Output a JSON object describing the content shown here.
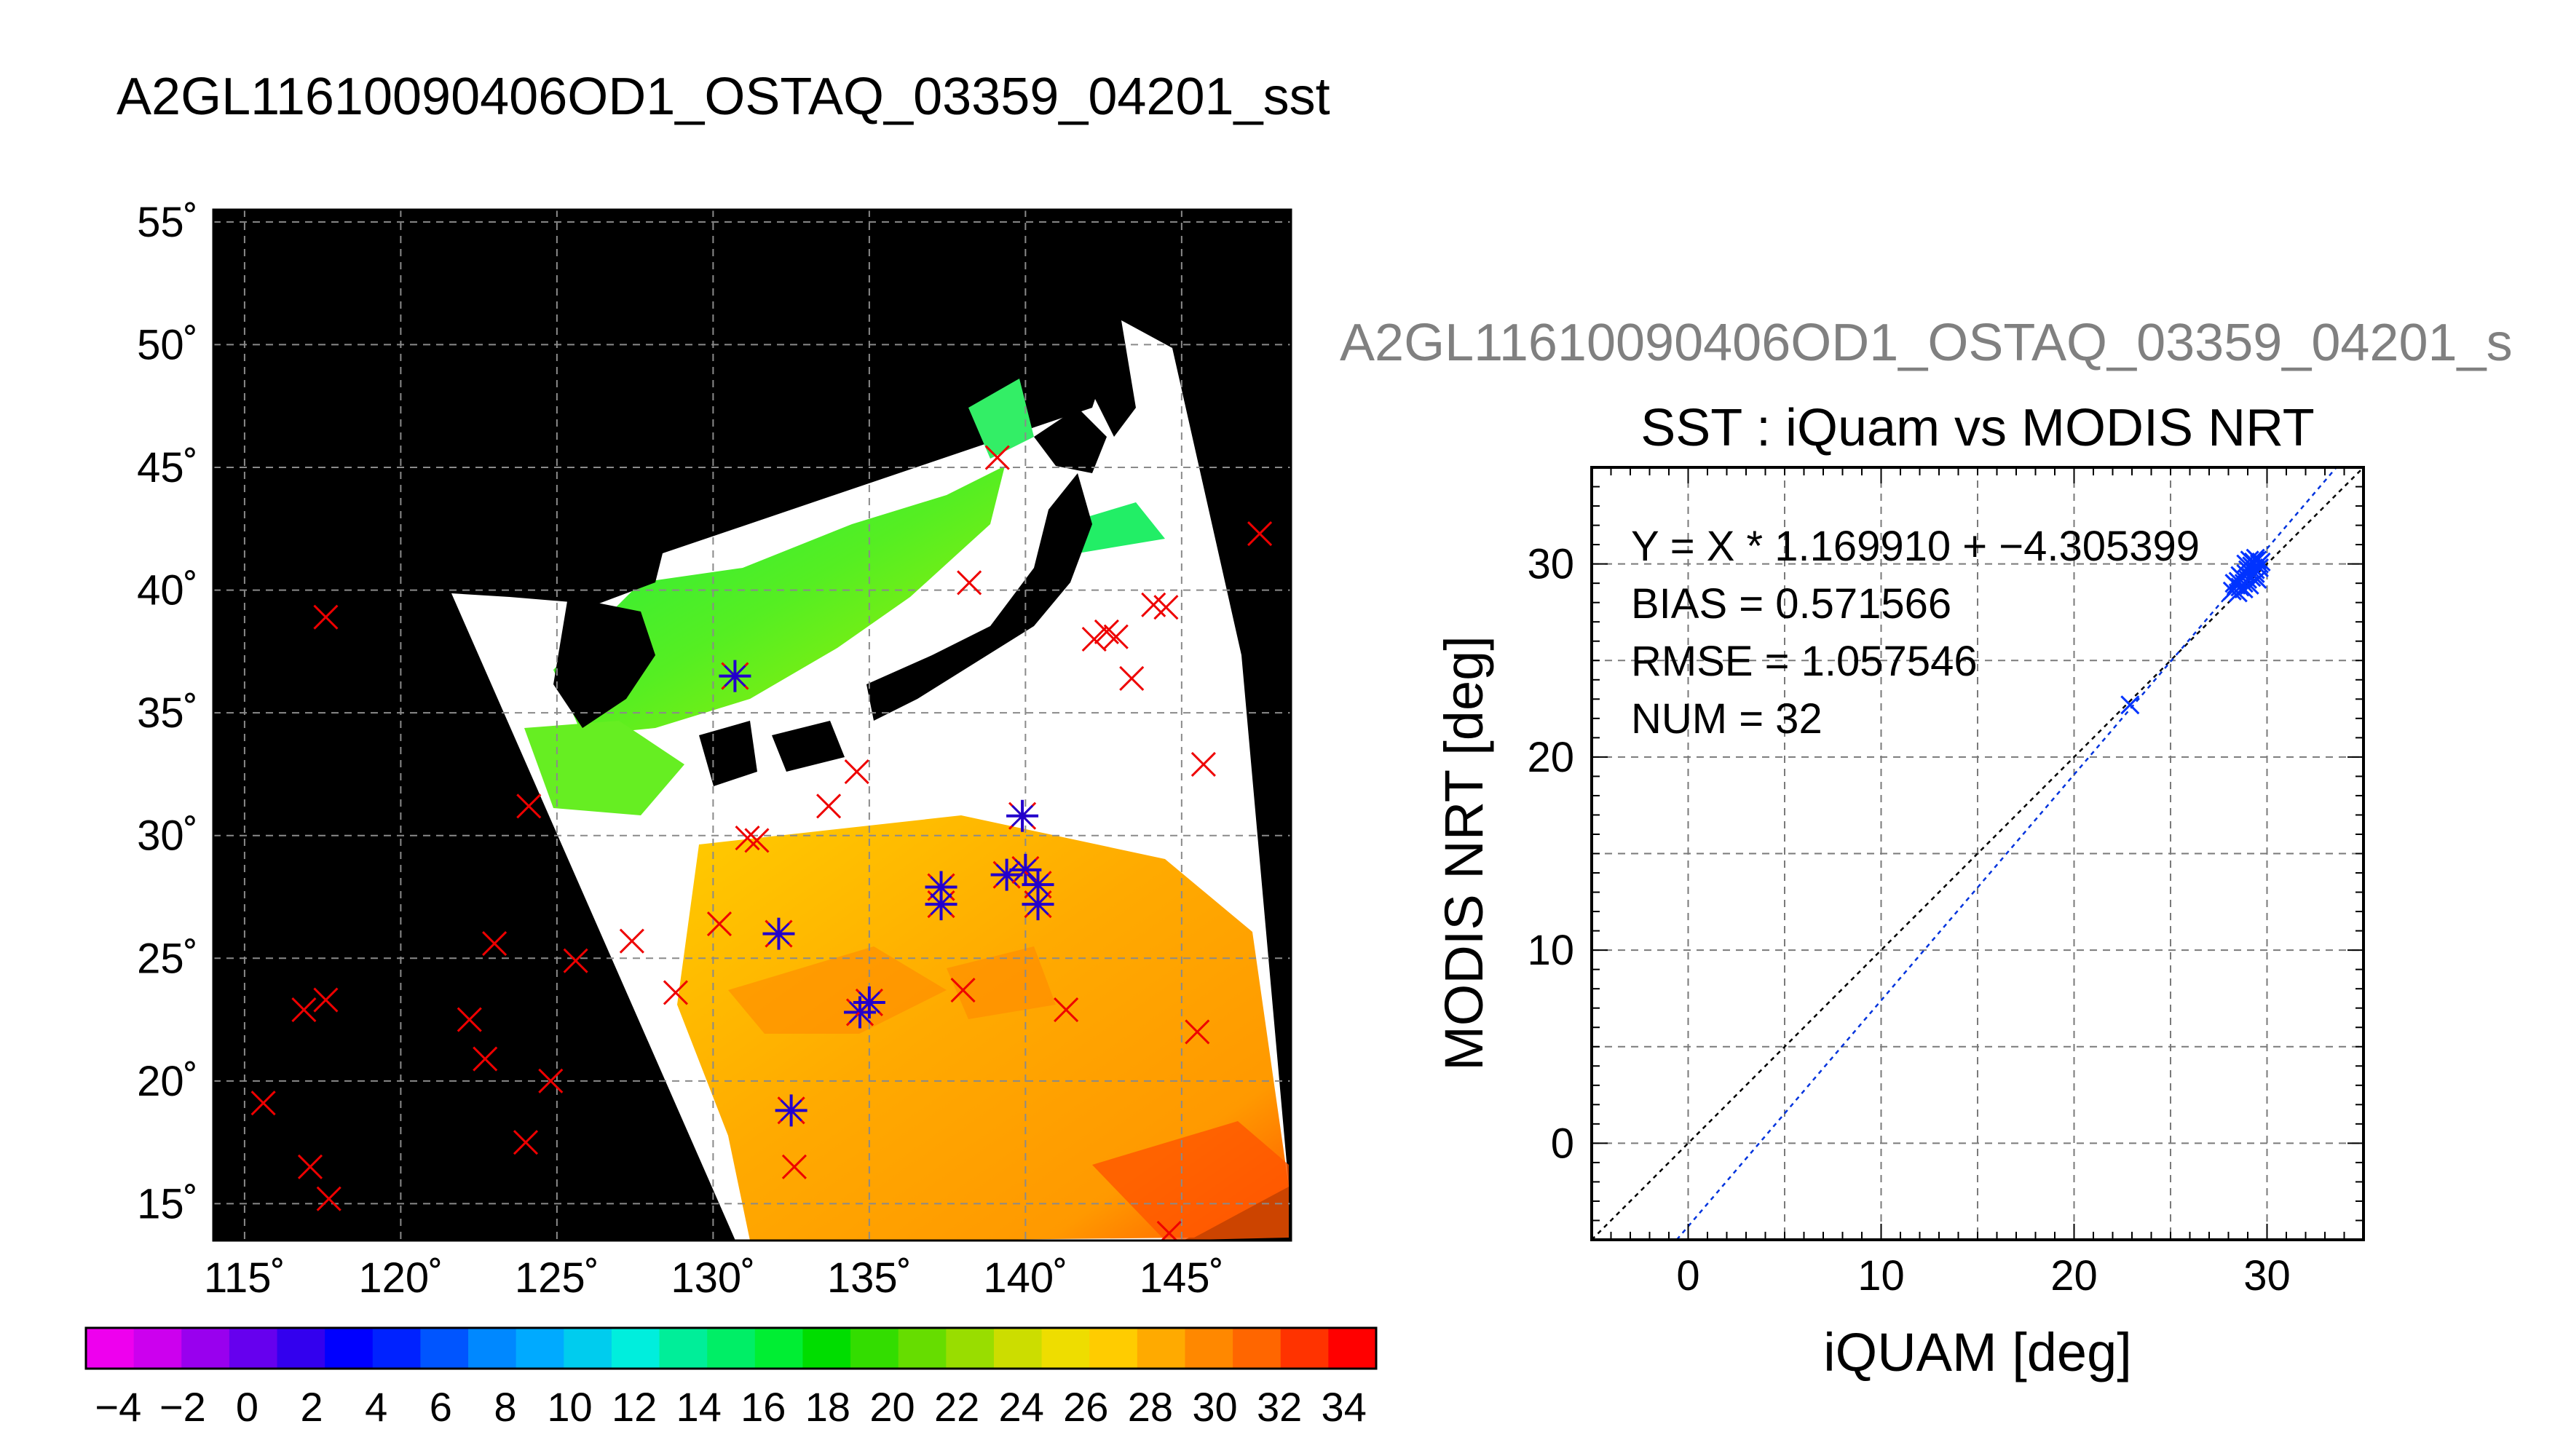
{
  "page_title": "A2GL11610090406OD1_OSTAQ_03359_04201_sst",
  "secondary_title": "A2GL11610090406OD1_OSTAQ_03359_04201_s",
  "chart_data": [
    {
      "type": "heatmap",
      "title": "",
      "x_ticks": [
        "115˚",
        "120˚",
        "125˚",
        "130˚",
        "135˚",
        "140˚",
        "145˚"
      ],
      "x_tick_values": [
        115,
        120,
        125,
        130,
        135,
        140,
        145
      ],
      "y_ticks": [
        "15˚",
        "20˚",
        "25˚",
        "30˚",
        "35˚",
        "40˚",
        "45˚",
        "50˚",
        "55˚"
      ],
      "y_tick_values": [
        15,
        20,
        25,
        30,
        35,
        40,
        45,
        50,
        55
      ],
      "xlim": [
        114,
        148.5
      ],
      "ylim": [
        13.5,
        55.5
      ],
      "grid": true,
      "colorbar": {
        "ticks": [
          "−4",
          "−2",
          "0",
          "2",
          "4",
          "6",
          "8",
          "10",
          "12",
          "14",
          "16",
          "18",
          "20",
          "22",
          "24",
          "26",
          "28",
          "30",
          "32",
          "34"
        ],
        "range": [
          -5,
          35
        ],
        "colors": [
          "#ee00ee",
          "#cc00ee",
          "#9900ee",
          "#6600ee",
          "#3300ee",
          "#0000ff",
          "#0022ff",
          "#0055ff",
          "#0088ff",
          "#00aaff",
          "#00ccee",
          "#00eedd",
          "#00ee99",
          "#00ee66",
          "#00ee33",
          "#00dd00",
          "#33dd00",
          "#66dd00",
          "#99dd00",
          "#ccdd00",
          "#eedd00",
          "#ffcc00",
          "#ffaa00",
          "#ff8800",
          "#ff6600",
          "#ff3300",
          "#ff0000"
        ]
      },
      "station_points_red_x": [
        [
          115.6,
          19.1
        ],
        [
          116.9,
          22.9
        ],
        [
          117.6,
          23.3
        ],
        [
          117.1,
          16.5
        ],
        [
          117.7,
          15.2
        ],
        [
          117.6,
          38.9
        ],
        [
          122.2,
          22.5
        ],
        [
          122.7,
          20.9
        ],
        [
          123.0,
          25.6
        ],
        [
          124.0,
          17.5
        ],
        [
          124.1,
          31.2
        ],
        [
          124.8,
          20.0
        ],
        [
          125.6,
          24.9
        ],
        [
          127.4,
          25.7
        ],
        [
          128.8,
          23.6
        ],
        [
          130.2,
          26.4
        ],
        [
          131.1,
          29.9
        ],
        [
          131.4,
          29.8
        ],
        [
          132.6,
          16.5
        ],
        [
          133.7,
          31.2
        ],
        [
          134.6,
          32.6
        ],
        [
          138.0,
          23.7
        ],
        [
          138.2,
          40.3
        ],
        [
          139.1,
          45.4
        ],
        [
          141.3,
          22.9
        ],
        [
          142.2,
          38.0
        ],
        [
          142.6,
          38.3
        ],
        [
          142.9,
          38.1
        ],
        [
          143.4,
          36.4
        ],
        [
          144.1,
          39.4
        ],
        [
          144.5,
          39.3
        ],
        [
          145.5,
          22.0
        ],
        [
          145.7,
          32.9
        ],
        [
          144.6,
          13.8
        ],
        [
          147.5,
          42.3
        ]
      ],
      "station_points_matched": [
        [
          130.7,
          36.5
        ],
        [
          132.1,
          26.0
        ],
        [
          132.5,
          18.8
        ],
        [
          134.7,
          22.8
        ],
        [
          135.0,
          23.2
        ],
        [
          137.3,
          27.9
        ],
        [
          137.3,
          27.2
        ],
        [
          139.4,
          28.4
        ],
        [
          139.9,
          30.8
        ],
        [
          140.0,
          28.6
        ],
        [
          140.4,
          27.2
        ],
        [
          140.4,
          28.0
        ]
      ]
    },
    {
      "type": "scatter",
      "title": "SST : iQuam vs MODIS NRT",
      "xlabel": "iQUAM [deg]",
      "ylabel": "MODIS NRT [deg]",
      "xlim": [
        -5,
        35
      ],
      "ylim": [
        -5,
        35
      ],
      "x_ticks": [
        "0",
        "10",
        "20",
        "30"
      ],
      "x_tick_values": [
        0,
        10,
        20,
        30
      ],
      "y_ticks": [
        "0",
        "10",
        "20",
        "30"
      ],
      "y_tick_values": [
        0,
        10,
        20,
        30
      ],
      "grid": true,
      "annotations": [
        "Y = X * 1.169910 + −4.305399",
        "BIAS = 0.571566",
        "RMSE = 1.057546",
        "NUM = 32"
      ],
      "fit": {
        "slope": 1.16991,
        "intercept": -4.305399
      },
      "points": [
        [
          22.9,
          22.7
        ],
        [
          28.2,
          28.6
        ],
        [
          28.4,
          28.9
        ],
        [
          28.5,
          29.1
        ],
        [
          28.6,
          28.8
        ],
        [
          28.7,
          29.3
        ],
        [
          28.8,
          29.0
        ],
        [
          28.9,
          29.5
        ],
        [
          29.0,
          29.2
        ],
        [
          29.1,
          29.6
        ],
        [
          29.2,
          29.3
        ],
        [
          29.3,
          29.8
        ],
        [
          29.3,
          30.1
        ],
        [
          29.4,
          29.5
        ],
        [
          29.4,
          30.3
        ],
        [
          29.5,
          29.9
        ],
        [
          29.5,
          29.2
        ],
        [
          29.6,
          30.0
        ],
        [
          29.1,
          30.2
        ],
        [
          28.9,
          30.0
        ],
        [
          28.6,
          29.4
        ],
        [
          28.3,
          29.0
        ],
        [
          29.2,
          29.9
        ],
        [
          29.4,
          29.7
        ],
        [
          29.7,
          30.1
        ],
        [
          29.0,
          29.7
        ],
        [
          28.8,
          28.7
        ],
        [
          28.5,
          28.5
        ],
        [
          29.5,
          30.2
        ],
        [
          29.6,
          29.8
        ],
        [
          29.3,
          29.4
        ],
        [
          29.1,
          28.9
        ]
      ]
    }
  ]
}
